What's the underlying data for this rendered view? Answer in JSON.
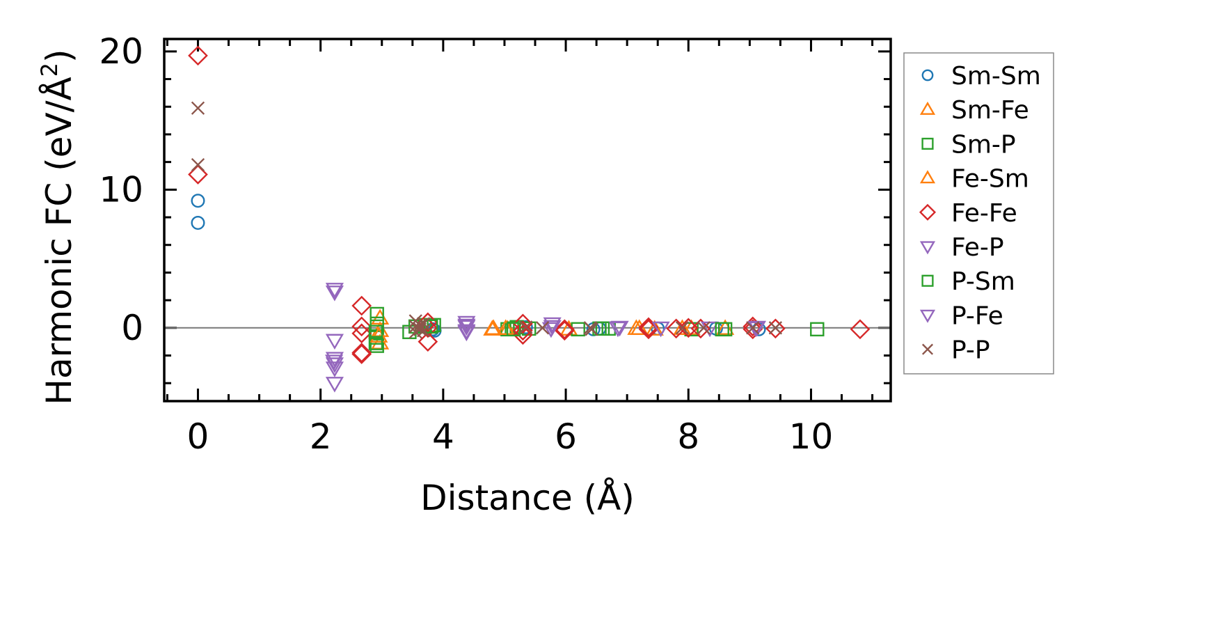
{
  "chart_data": {
    "type": "scatter",
    "title": "",
    "xlabel": "Distance (Å)",
    "ylabel": "Harmonic FC (eV/Å²)",
    "ylabel_parts": {
      "prefix": "Harmonic FC (eV/Å",
      "superscript": "2",
      "suffix": ")"
    },
    "xlim": [
      -0.55,
      11.3
    ],
    "ylim": [
      -5.3,
      20.9
    ],
    "xticks": [
      0,
      2,
      4,
      6,
      8,
      10
    ],
    "xtick_labels": [
      "0",
      "2",
      "4",
      "6",
      "8",
      "10"
    ],
    "yticks": [
      0,
      10,
      20
    ],
    "ytick_labels": [
      "0",
      "10",
      "20"
    ],
    "x_minor_step": 0.5,
    "y_minor_step": 2,
    "zero_line": true,
    "grid": false,
    "legend_position": "outside-right",
    "series": [
      {
        "name": "Sm-Sm",
        "marker": "circle",
        "color": "#1f77b4",
        "points": [
          [
            0,
            9.2
          ],
          [
            0,
            7.6
          ],
          [
            3.83,
            -0.1
          ],
          [
            3.86,
            -0.2
          ],
          [
            5.35,
            0.05
          ],
          [
            6.45,
            -0.1
          ],
          [
            6.55,
            -0.05
          ],
          [
            7.5,
            -0.05
          ],
          [
            8.45,
            -0.05
          ],
          [
            9.15,
            -0.1
          ]
        ]
      },
      {
        "name": "Sm-Fe",
        "marker": "triangle-up",
        "color": "#ff7f0e",
        "points": [
          [
            2.97,
            0.7
          ],
          [
            2.97,
            -0.2
          ],
          [
            2.97,
            -1.1
          ],
          [
            4.8,
            -0.1
          ],
          [
            5.05,
            -0.1
          ],
          [
            6.05,
            -0.1
          ],
          [
            7.15,
            -0.05
          ],
          [
            7.45,
            -0.1
          ],
          [
            8.05,
            -0.05
          ],
          [
            8.6,
            -0.05
          ]
        ]
      },
      {
        "name": "Sm-P",
        "marker": "square",
        "color": "#2ca02c",
        "points": [
          [
            2.92,
            1.0
          ],
          [
            2.92,
            0.3
          ],
          [
            2.92,
            -0.7
          ],
          [
            2.92,
            -1.3
          ],
          [
            3.45,
            -0.3
          ],
          [
            3.55,
            0.1
          ],
          [
            3.7,
            0.2
          ],
          [
            3.85,
            0.2
          ],
          [
            5.05,
            -0.1
          ],
          [
            5.12,
            -0.05
          ],
          [
            5.2,
            0.05
          ],
          [
            5.4,
            -0.05
          ],
          [
            6.2,
            -0.1
          ],
          [
            6.55,
            -0.05
          ],
          [
            6.7,
            -0.05
          ],
          [
            8.05,
            -0.1
          ],
          [
            8.6,
            -0.1
          ],
          [
            10.1,
            -0.1
          ]
        ]
      },
      {
        "name": "Fe-Sm",
        "marker": "triangle-up",
        "color": "#ff7f0e",
        "points": [
          [
            2.95,
            -0.6
          ],
          [
            4.82,
            -0.05
          ],
          [
            5.02,
            -0.05
          ],
          [
            7.2,
            -0.05
          ],
          [
            7.9,
            -0.05
          ]
        ]
      },
      {
        "name": "Fe-Fe",
        "marker": "diamond",
        "color": "#d62728",
        "points": [
          [
            0,
            19.7
          ],
          [
            0,
            11.1
          ],
          [
            2.67,
            1.6
          ],
          [
            2.67,
            0.1
          ],
          [
            2.67,
            -0.4
          ],
          [
            2.67,
            -1.8
          ],
          [
            2.67,
            -1.9
          ],
          [
            3.75,
            -1.0
          ],
          [
            3.75,
            0.4
          ],
          [
            3.75,
            0.0
          ],
          [
            5.3,
            0.3
          ],
          [
            5.3,
            -0.5
          ],
          [
            5.3,
            -0.2
          ],
          [
            5.98,
            -0.2
          ],
          [
            5.98,
            -0.1
          ],
          [
            7.35,
            0.05
          ],
          [
            7.35,
            -0.1
          ],
          [
            7.8,
            -0.05
          ],
          [
            8.0,
            0.0
          ],
          [
            8.2,
            -0.05
          ],
          [
            9.05,
            0.1
          ],
          [
            9.05,
            -0.1
          ],
          [
            9.42,
            -0.05
          ],
          [
            10.8,
            -0.1
          ]
        ]
      },
      {
        "name": "Fe-P",
        "marker": "triangle-down",
        "color": "#9467bd",
        "points": [
          [
            2.23,
            2.8
          ],
          [
            2.23,
            2.6
          ],
          [
            2.23,
            -0.9
          ],
          [
            2.23,
            -2.2
          ],
          [
            2.23,
            -2.6
          ],
          [
            2.23,
            -2.9
          ],
          [
            2.23,
            -4.0
          ],
          [
            4.38,
            0.4
          ],
          [
            4.38,
            0.2
          ],
          [
            4.38,
            -0.3
          ],
          [
            5.78,
            0.3
          ],
          [
            5.78,
            0.1
          ],
          [
            6.88,
            0.05
          ],
          [
            7.55,
            0.0
          ],
          [
            8.35,
            0.0
          ],
          [
            9.12,
            0.05
          ]
        ]
      },
      {
        "name": "P-Sm",
        "marker": "square",
        "color": "#2ca02c",
        "points": [
          [
            2.9,
            -0.3
          ],
          [
            2.9,
            -1.1
          ],
          [
            3.8,
            0.1
          ],
          [
            5.15,
            -0.1
          ],
          [
            6.6,
            -0.05
          ],
          [
            8.55,
            -0.1
          ]
        ]
      },
      {
        "name": "P-Fe",
        "marker": "triangle-down",
        "color": "#9467bd",
        "points": [
          [
            2.22,
            -2.4
          ],
          [
            4.38,
            0.1
          ],
          [
            4.38,
            -0.2
          ],
          [
            5.76,
            -0.05
          ],
          [
            6.85,
            0.0
          ],
          [
            9.1,
            0.0
          ]
        ]
      },
      {
        "name": "P-P",
        "marker": "x",
        "color": "#8c564b",
        "points": [
          [
            0,
            15.9
          ],
          [
            0,
            11.8
          ],
          [
            3.55,
            0.5
          ],
          [
            3.55,
            0.1
          ],
          [
            3.55,
            -0.3
          ],
          [
            3.62,
            0.2
          ],
          [
            3.62,
            -0.1
          ],
          [
            3.68,
            0.3
          ],
          [
            3.68,
            -0.2
          ],
          [
            5.35,
            0.05
          ],
          [
            5.62,
            0.0
          ],
          [
            6.4,
            0.0
          ],
          [
            6.42,
            -0.1
          ],
          [
            7.9,
            0.0
          ],
          [
            8.25,
            0.0
          ],
          [
            9.05,
            0.0
          ],
          [
            9.42,
            0.0
          ]
        ]
      }
    ]
  }
}
